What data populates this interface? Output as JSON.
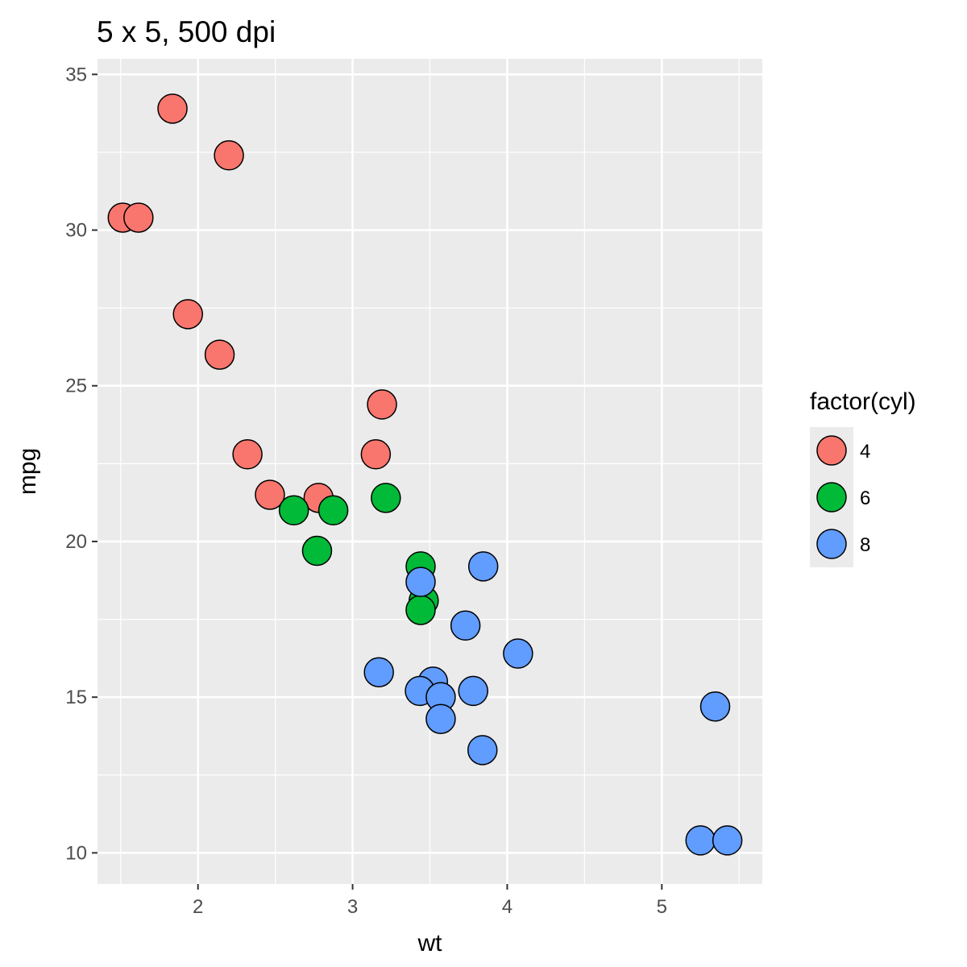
{
  "chart_data": {
    "type": "scatter",
    "title": "5 x 5, 500 dpi",
    "xlabel": "wt",
    "ylabel": "mpg",
    "xlim": [
      1.35,
      5.65
    ],
    "ylim": [
      9.0,
      35.5
    ],
    "x_ticks": [
      2,
      3,
      4,
      5
    ],
    "y_ticks": [
      10,
      15,
      20,
      25,
      30,
      35
    ],
    "x_minor": [
      1.5,
      2.5,
      3.5,
      4.5,
      5.5
    ],
    "y_minor": [
      12.5,
      17.5,
      22.5,
      27.5,
      32.5
    ],
    "grid": true,
    "legend": {
      "title": "factor(cyl)",
      "placement": "right",
      "entries": [
        "4",
        "6",
        "8"
      ]
    },
    "colors": {
      "4": "#F8766D",
      "6": "#00BA38",
      "8": "#619CFF",
      "panel": "#EBEBEB",
      "grid": "#FFFFFF",
      "outline": "#000000"
    },
    "series": [
      {
        "name": "4",
        "points": [
          {
            "x": 1.835,
            "y": 33.9
          },
          {
            "x": 2.2,
            "y": 32.4
          },
          {
            "x": 1.513,
            "y": 30.4
          },
          {
            "x": 1.615,
            "y": 30.4
          },
          {
            "x": 1.935,
            "y": 27.3
          },
          {
            "x": 2.14,
            "y": 26.0
          },
          {
            "x": 3.19,
            "y": 24.4
          },
          {
            "x": 2.32,
            "y": 22.8
          },
          {
            "x": 3.15,
            "y": 22.8
          },
          {
            "x": 2.465,
            "y": 21.5
          },
          {
            "x": 2.78,
            "y": 21.4
          }
        ]
      },
      {
        "name": "6",
        "points": [
          {
            "x": 2.62,
            "y": 21.0
          },
          {
            "x": 2.875,
            "y": 21.0
          },
          {
            "x": 3.215,
            "y": 21.4
          },
          {
            "x": 2.77,
            "y": 19.7
          },
          {
            "x": 3.44,
            "y": 19.2
          },
          {
            "x": 3.46,
            "y": 18.1
          },
          {
            "x": 3.44,
            "y": 17.8
          }
        ]
      },
      {
        "name": "8",
        "points": [
          {
            "x": 3.44,
            "y": 18.7
          },
          {
            "x": 3.845,
            "y": 19.2
          },
          {
            "x": 3.73,
            "y": 17.3
          },
          {
            "x": 4.07,
            "y": 16.4
          },
          {
            "x": 3.17,
            "y": 15.8
          },
          {
            "x": 3.52,
            "y": 15.5
          },
          {
            "x": 3.435,
            "y": 15.2
          },
          {
            "x": 3.78,
            "y": 15.2
          },
          {
            "x": 3.57,
            "y": 15.0
          },
          {
            "x": 3.57,
            "y": 14.3
          },
          {
            "x": 3.84,
            "y": 13.3
          },
          {
            "x": 5.345,
            "y": 14.7
          },
          {
            "x": 5.25,
            "y": 10.4
          },
          {
            "x": 5.424,
            "y": 10.4
          }
        ]
      }
    ]
  }
}
